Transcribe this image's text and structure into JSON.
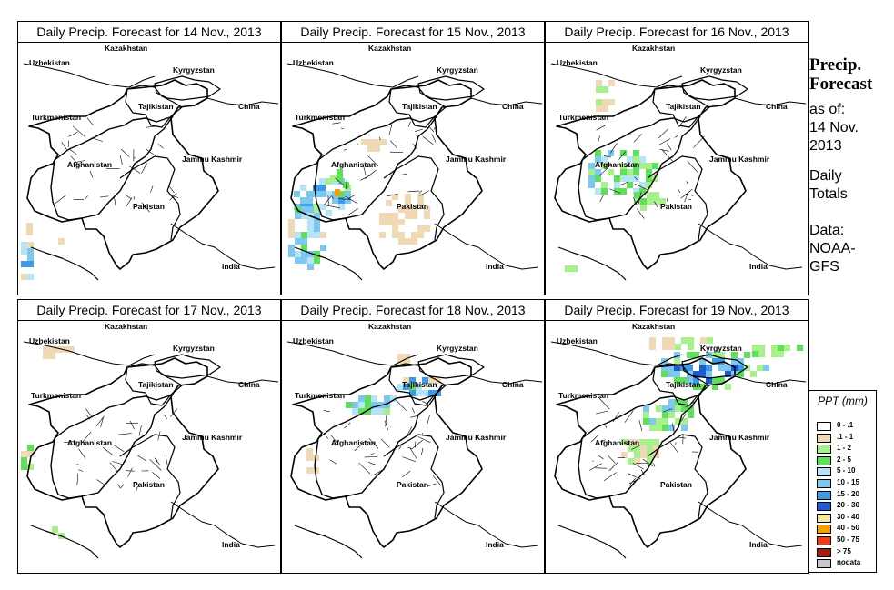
{
  "panels": [
    {
      "title": "Daily Precip. Forecast for  14 Nov., 2013"
    },
    {
      "title": "Daily Precip. Forecast for  15 Nov., 2013"
    },
    {
      "title": "Daily Precip. Forecast for  16 Nov., 2013"
    },
    {
      "title": "Daily Precip. Forecast for  17 Nov., 2013"
    },
    {
      "title": "Daily Precip. Forecast for  18 Nov., 2013"
    },
    {
      "title": "Daily Precip. Forecast for  19 Nov., 2013"
    }
  ],
  "map_labels": {
    "kazakhstan": "Kazakhstan",
    "uzbekistan": "Uzbekistan",
    "kyrgyzstan": "Kyrgyzstan",
    "tajikistan": "Tajikistan",
    "china": "China",
    "turkmenistan": "Turkmenistan",
    "jammu_kashmir": "Jammu Kashmir",
    "afghanistan": "Afghanistan",
    "pakistan": "Pakistan",
    "india": "India"
  },
  "sidebar": {
    "title_line1": "Precip.",
    "title_line2": "Forecast",
    "asof": "as of:",
    "date1": "14 Nov.",
    "date2": "2013",
    "daily1": "Daily",
    "daily2": "Totals",
    "data1": "Data:",
    "data2": "NOAA-",
    "data3": "GFS"
  },
  "legend": {
    "title": "PPT (mm)",
    "items": [
      {
        "label": "0 - .1",
        "color": "#ffffff"
      },
      {
        "label": ".1 - 1",
        "color": "#f0d9b5"
      },
      {
        "label": "1 - 2",
        "color": "#a8f08c"
      },
      {
        "label": "2 - 5",
        "color": "#5fe05a"
      },
      {
        "label": "5 - 10",
        "color": "#b4e4f5"
      },
      {
        "label": "10 - 15",
        "color": "#7ec8f0"
      },
      {
        "label": "15 - 20",
        "color": "#3c9ae6"
      },
      {
        "label": "20 - 30",
        "color": "#1e5ad2"
      },
      {
        "label": "30 - 40",
        "color": "#f5e6a0"
      },
      {
        "label": "40 - 50",
        "color": "#f5a000"
      },
      {
        "label": "50 - 75",
        "color": "#f03c14"
      },
      {
        "label": "> 75",
        "color": "#a01e14"
      },
      {
        "label": "nodata",
        "color": "#c8c8c8"
      }
    ]
  }
}
